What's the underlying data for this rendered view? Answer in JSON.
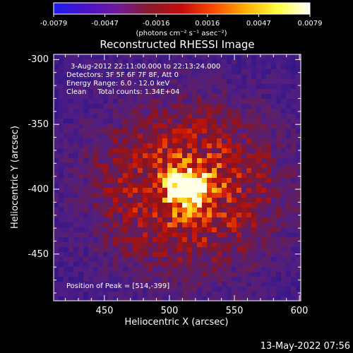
{
  "colorbar": {
    "tick_labels": [
      "-0.0079",
      "-0.0047",
      "-0.0016",
      "0.0016",
      "0.0047",
      "0.0079"
    ],
    "unit_label": "(photons cm⁻² s⁻¹ asec⁻²)",
    "colors": [
      "#1d1df2",
      "#4b12c8",
      "#6e1a9a",
      "#8a1a2a",
      "#c40c0c",
      "#ff4a00",
      "#ffb000",
      "#ffff40",
      "#ffffff"
    ]
  },
  "chart_data": {
    "type": "heatmap",
    "title": "Reconstructed RHESSI Image",
    "xlabel": "Heliocentric X (arcsec)",
    "ylabel": "Heliocentric Y (arcsec)",
    "xlim": [
      411,
      601
    ],
    "ylim": [
      -486,
      -296
    ],
    "x_ticks": [
      "450",
      "500",
      "550",
      "600"
    ],
    "y_ticks": [
      "-300",
      "-350",
      "-400",
      "-450"
    ],
    "peak": {
      "x": 514,
      "y": -399
    },
    "annotations": [
      "3-Aug-2012 22:11:00.000 to 22:13:24.000",
      "Detectors: 3F 5F 6F 7F 8F, Att 0",
      "Energy Range: 6.0 - 12.0 keV",
      "Clean     Total counts: 1.34E+04"
    ],
    "peak_label": "Position of Peak = [514,-399]"
  },
  "footer": {
    "timestamp": "13-May-2022 07:56"
  }
}
